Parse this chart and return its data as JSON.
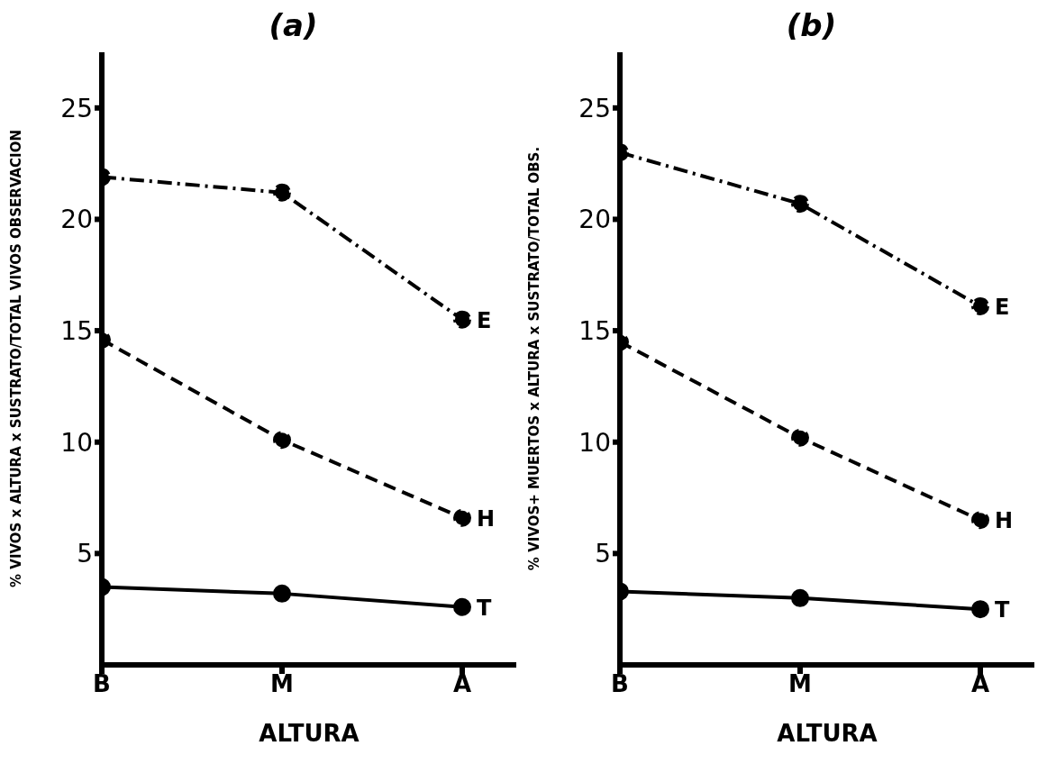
{
  "chart_data": [
    {
      "type": "line",
      "title": "(a)",
      "xlabel": "ALTURA",
      "ylabel": "% VIVOS x ALTURA x SUSTRATO/TOTAL VIVOS OBSERVACION",
      "categories": [
        "B",
        "M",
        "A"
      ],
      "ylim": [
        0,
        27.5
      ],
      "yticks": [
        5,
        10,
        15,
        20,
        25
      ],
      "grid": false,
      "legend": false,
      "marker": "circle",
      "series": [
        {
          "name": "E",
          "color": "#000000",
          "line_style": "dashdot",
          "values": [
            21.9,
            21.2,
            15.5
          ]
        },
        {
          "name": "H",
          "color": "#000000",
          "line_style": "dashed",
          "values": [
            14.6,
            10.1,
            6.6
          ]
        },
        {
          "name": "T",
          "color": "#000000",
          "line_style": "solid",
          "values": [
            3.5,
            3.2,
            2.6
          ]
        }
      ]
    },
    {
      "type": "line",
      "title": "(b)",
      "xlabel": "ALTURA",
      "ylabel": "% VIVOS+ MUERTOS x ALTURA x SUSTRATO/TOTAL OBS.",
      "categories": [
        "B",
        "M",
        "A"
      ],
      "ylim": [
        0,
        27.5
      ],
      "yticks": [
        5,
        10,
        15,
        20,
        25
      ],
      "grid": false,
      "legend": false,
      "marker": "circle",
      "series": [
        {
          "name": "E",
          "color": "#000000",
          "line_style": "dashdot",
          "values": [
            23.0,
            20.7,
            16.1
          ]
        },
        {
          "name": "H",
          "color": "#000000",
          "line_style": "dashed",
          "values": [
            14.5,
            10.2,
            6.5
          ]
        },
        {
          "name": "T",
          "color": "#000000",
          "line_style": "solid",
          "values": [
            3.3,
            3.0,
            2.5
          ]
        }
      ]
    }
  ]
}
